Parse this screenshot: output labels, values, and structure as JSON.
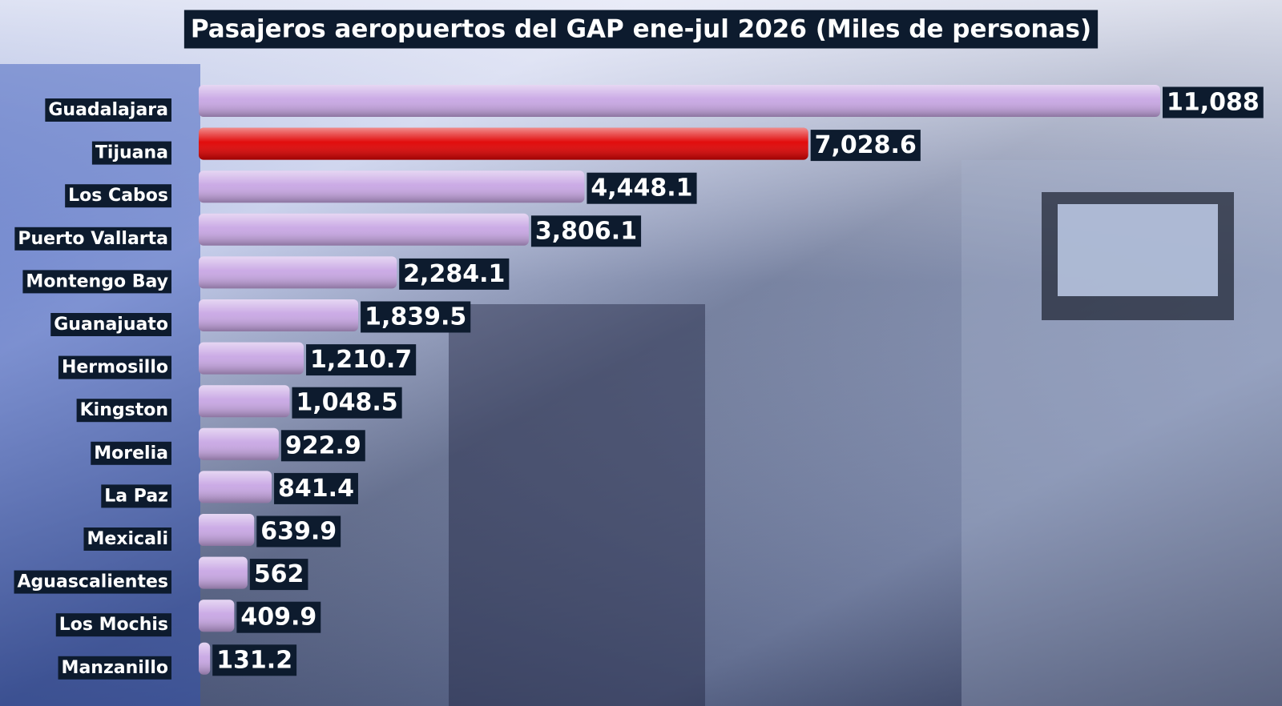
{
  "chart_data": {
    "type": "barh",
    "title": "Pasajeros aeropuertos del GAP ene-jul 2026 (Miles de personas)",
    "categories": [
      "Guadalajara",
      "Tijuana",
      "Los Cabos",
      "Puerto Vallarta",
      "Montengo Bay",
      "Guanajuato",
      "Hermosillo",
      "Kingston",
      "Morelia",
      "La Paz",
      "Mexicali",
      "Aguascalientes",
      "Los Mochis",
      "Manzanillo"
    ],
    "values": [
      11088,
      7028.6,
      4448.1,
      3806.1,
      2284.1,
      1839.5,
      1210.7,
      1048.5,
      922.9,
      841.4,
      639.9,
      562,
      409.9,
      131.2
    ],
    "value_labels": [
      "11,088",
      "7,028.6",
      "4,448.1",
      "3,806.1",
      "2,284.1",
      "1,839.5",
      "1,210.7",
      "1,048.5",
      "922.9",
      "841.4",
      "639.9",
      "562",
      "409.9",
      "131.2"
    ],
    "colors": [
      "#c8a6e4",
      "#e00000",
      "#c8a6e4",
      "#c8a6e4",
      "#c8a6e4",
      "#c8a6e4",
      "#c8a6e4",
      "#c8a6e4",
      "#c8a6e4",
      "#c8a6e4",
      "#c8a6e4",
      "#c8a6e4",
      "#c8a6e4",
      "#c8a6e4"
    ]
  }
}
